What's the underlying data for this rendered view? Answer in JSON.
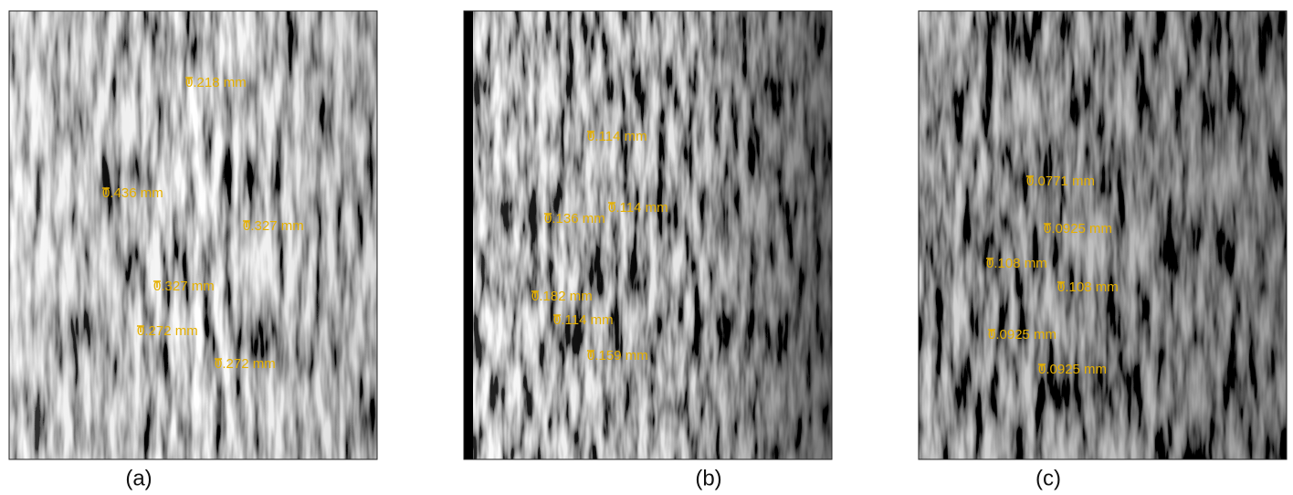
{
  "panels": [
    {
      "label": "(a)",
      "measurements": [
        "0.218 mm",
        "0.436 mm",
        "0.327 mm",
        "0.327 mm",
        "0.272 mm",
        "0.272 mm"
      ]
    },
    {
      "label": "(b)",
      "measurements": [
        "0.114 mm",
        "0.114 mm",
        "0.136 mm",
        "0.182 mm",
        "0.114 mm",
        "0.159 mm"
      ]
    },
    {
      "label": "(c)",
      "measurements": [
        "0.0771 mm",
        "0.0925 mm",
        "0.108 mm",
        "0.108 mm",
        "0.0925 mm",
        "0.0925 mm"
      ]
    }
  ]
}
